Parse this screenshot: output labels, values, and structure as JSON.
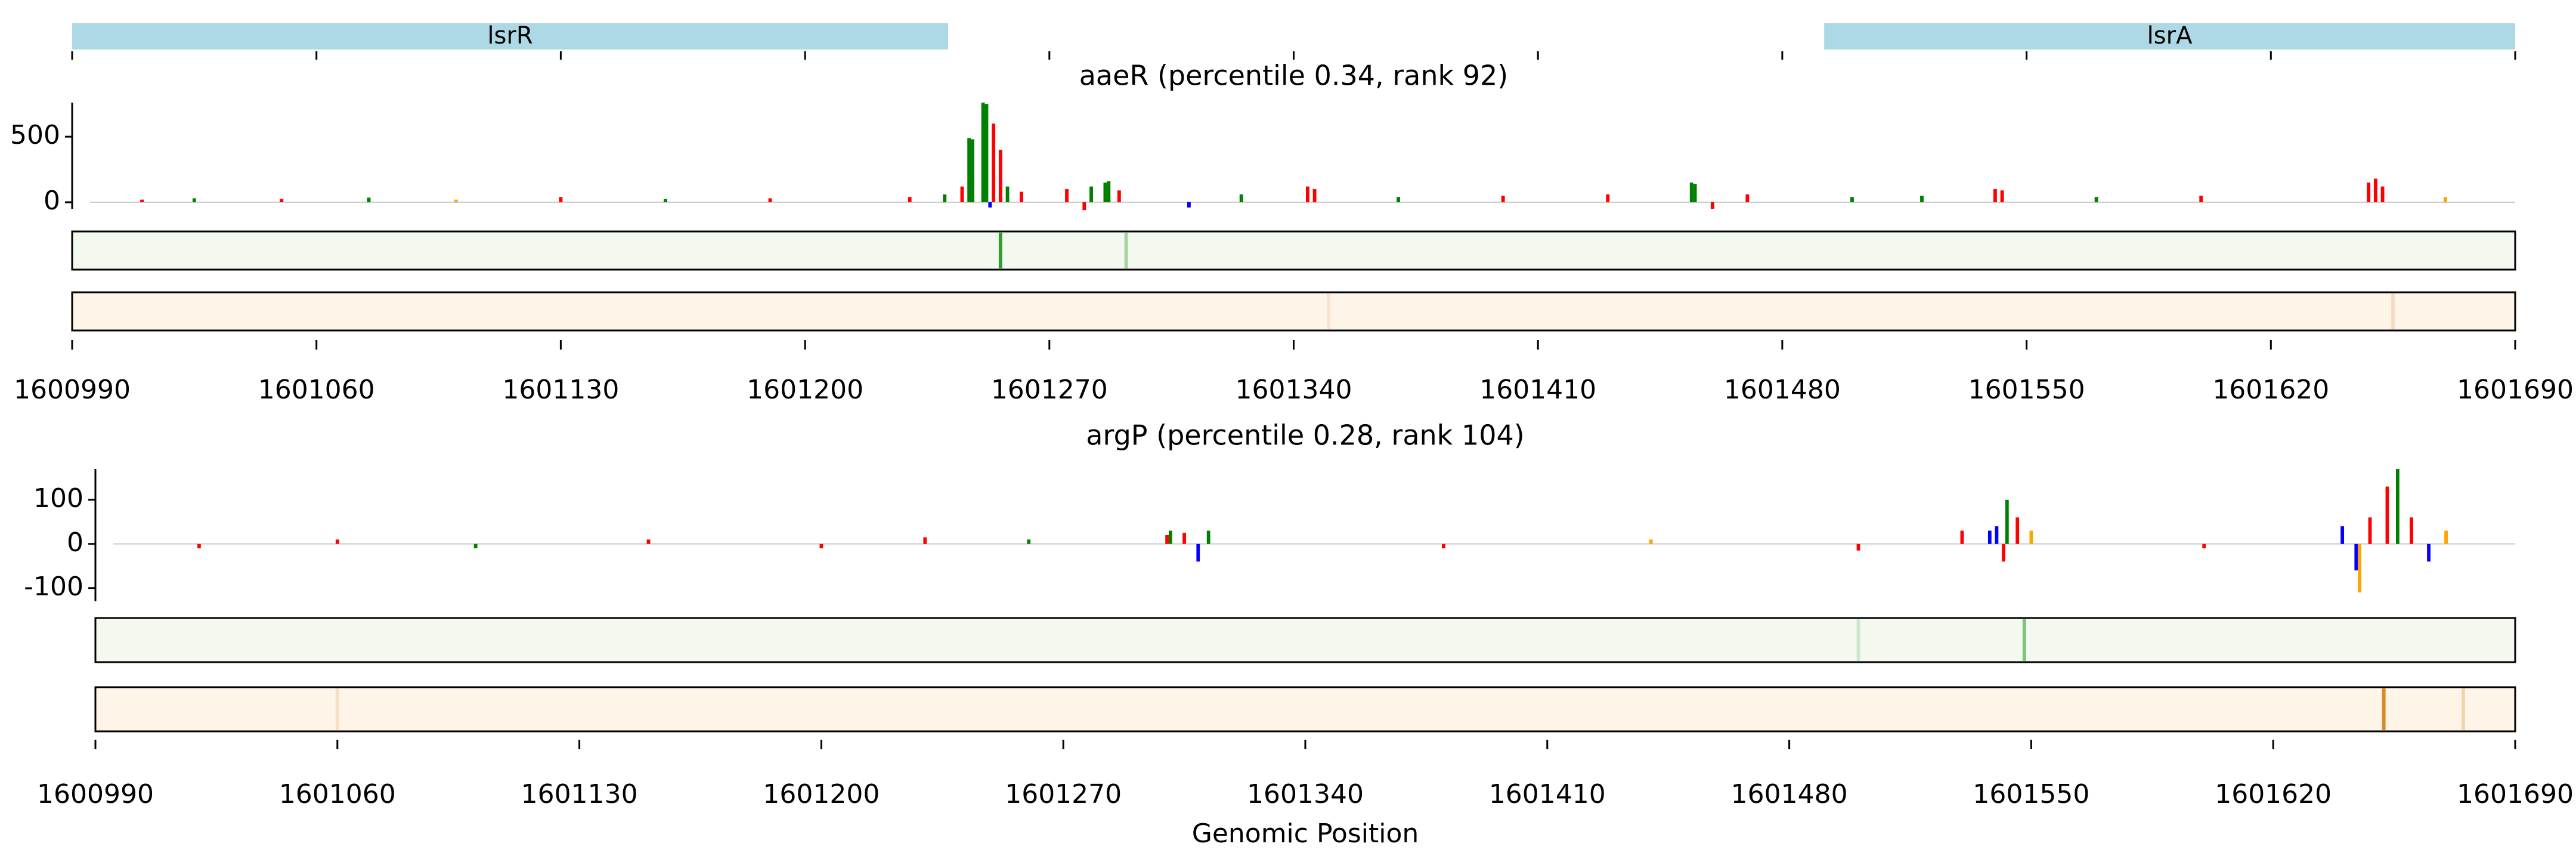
{
  "genes": {
    "xlim": [
      1600990,
      1601690
    ],
    "xticks": [
      1600990,
      1601060,
      1601130,
      1601200,
      1601270,
      1601340,
      1601410,
      1601480,
      1601550,
      1601620,
      1601690
    ],
    "color": "#add8e6",
    "items": [
      {
        "name": "lsrR",
        "start": 1600990,
        "end": 1601241
      },
      {
        "name": "lsrA",
        "start": 1601492,
        "end": 1601690
      }
    ]
  },
  "chart_data": [
    {
      "type": "bar",
      "title": "aaeR (percentile 0.34, rank 92)",
      "xlim": [
        1600990,
        1601690
      ],
      "xticks": [
        1600990,
        1601060,
        1601130,
        1601200,
        1601270,
        1601340,
        1601410,
        1601480,
        1601550,
        1601620,
        1601690
      ],
      "ylim": [
        -50,
        760
      ],
      "yticks": [
        0,
        500
      ],
      "x": [
        1601010,
        1601025,
        1601050,
        1601075,
        1601100,
        1601130,
        1601160,
        1601190,
        1601230,
        1601240,
        1601245,
        1601247,
        1601248,
        1601251,
        1601252,
        1601253,
        1601254,
        1601256,
        1601258,
        1601262,
        1601275,
        1601280,
        1601282,
        1601286,
        1601287,
        1601290,
        1601310,
        1601325,
        1601344,
        1601346,
        1601370,
        1601400,
        1601430,
        1601454,
        1601455,
        1601460,
        1601470,
        1601500,
        1601520,
        1601541,
        1601543,
        1601570,
        1601600,
        1601648,
        1601650,
        1601652,
        1601670
      ],
      "values": [
        20,
        30,
        25,
        35,
        20,
        40,
        25,
        30,
        40,
        60,
        120,
        490,
        480,
        760,
        750,
        -40,
        600,
        400,
        120,
        80,
        100,
        -60,
        120,
        150,
        160,
        90,
        -40,
        60,
        120,
        100,
        40,
        50,
        60,
        150,
        140,
        -50,
        60,
        40,
        50,
        100,
        90,
        40,
        50,
        150,
        180,
        120,
        40
      ],
      "colors": [
        "#ff0000",
        "#008000",
        "#ff0000",
        "#008000",
        "#ffa500",
        "#ff0000",
        "#008000",
        "#ff0000",
        "#ff0000",
        "#008000",
        "#ff0000",
        "#008000",
        "#008000",
        "#008000",
        "#008000",
        "#0000ff",
        "#ff0000",
        "#ff0000",
        "#008000",
        "#ff0000",
        "#ff0000",
        "#ff0000",
        "#008000",
        "#008000",
        "#008000",
        "#ff0000",
        "#0000ff",
        "#008000",
        "#ff0000",
        "#ff0000",
        "#008000",
        "#ff0000",
        "#ff0000",
        "#008000",
        "#008000",
        "#ff0000",
        "#ff0000",
        "#008000",
        "#008000",
        "#ff0000",
        "#ff0000",
        "#008000",
        "#ff0000",
        "#ff0000",
        "#ff0000",
        "#ff0000",
        "#ffa500"
      ],
      "tracks": [
        {
          "color": "#2ca02c",
          "background": "#f3f9ef",
          "x": [
            1601256,
            1601292
          ],
          "values": [
            1,
            0.4
          ]
        },
        {
          "color": "#e6a060",
          "background": "#fff4e8",
          "x": [
            1601350,
            1601655
          ],
          "values": [
            0.2,
            0.3
          ]
        }
      ]
    },
    {
      "type": "bar",
      "title": "argP (percentile 0.28, rank 104)",
      "xlabel": "Genomic Position",
      "xlim": [
        1600990,
        1601690
      ],
      "xticks": [
        1600990,
        1601060,
        1601130,
        1601200,
        1601270,
        1601340,
        1601410,
        1601480,
        1601550,
        1601620,
        1601690
      ],
      "ylim": [
        -130,
        170
      ],
      "yticks": [
        -100,
        0,
        100
      ],
      "x": [
        1601020,
        1601060,
        1601100,
        1601150,
        1601200,
        1601230,
        1601260,
        1601300,
        1601301,
        1601305,
        1601309,
        1601312,
        1601380,
        1601440,
        1601500,
        1601530,
        1601538,
        1601540,
        1601542,
        1601543,
        1601546,
        1601550,
        1601600,
        1601640,
        1601644,
        1601645,
        1601648,
        1601653,
        1601656,
        1601660,
        1601665,
        1601670
      ],
      "values": [
        -10,
        10,
        -10,
        10,
        -10,
        15,
        10,
        20,
        30,
        25,
        -40,
        30,
        -10,
        10,
        -15,
        30,
        30,
        40,
        -40,
        100,
        60,
        30,
        -10,
        40,
        -60,
        -110,
        60,
        130,
        170,
        60,
        -40,
        30
      ],
      "colors": [
        "#ff0000",
        "#ff0000",
        "#008000",
        "#ff0000",
        "#ff0000",
        "#ff0000",
        "#008000",
        "#ff0000",
        "#008000",
        "#ff0000",
        "#0000ff",
        "#008000",
        "#ff0000",
        "#ffa500",
        "#ff0000",
        "#ff0000",
        "#0000ff",
        "#0000ff",
        "#ff0000",
        "#008000",
        "#ff0000",
        "#ffa500",
        "#ff0000",
        "#0000ff",
        "#0000ff",
        "#ffa500",
        "#ff0000",
        "#ff0000",
        "#008000",
        "#ff0000",
        "#0000ff",
        "#ffa500"
      ],
      "tracks": [
        {
          "color": "#2ca02c",
          "background": "#f3f9ef",
          "x": [
            1601548,
            1601500
          ],
          "values": [
            0.6,
            0.2
          ]
        },
        {
          "color": "#d98a2b",
          "background": "#fff4e8",
          "x": [
            1601652,
            1601675,
            1601060
          ],
          "values": [
            1,
            0.3,
            0.2
          ]
        }
      ]
    }
  ]
}
